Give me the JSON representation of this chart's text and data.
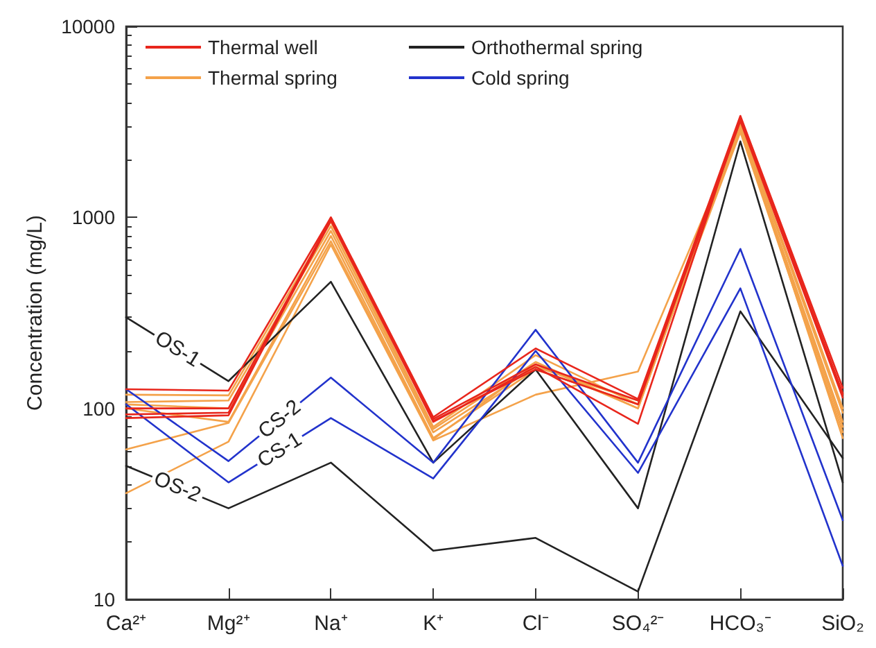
{
  "chart_data": {
    "type": "line",
    "ylabel": "Concentration (mg/L)",
    "log": "y",
    "grid": false,
    "legend": "top left",
    "marker": "none",
    "line_style": "solid",
    "categories": [
      "Ca²⁺",
      "Mg²⁺",
      "Na⁺",
      "K⁺",
      "Cl⁻",
      "SO₄²⁻",
      "HCO₃⁻",
      "SiO₂"
    ],
    "ylim": [
      10,
      10000
    ],
    "yticks": [
      10,
      100,
      1000,
      10000
    ],
    "series": [
      {
        "color": "#f4a24a",
        "values": [
          118,
          117,
          950,
          80,
          190,
          105,
          3100,
          100
        ]
      },
      {
        "color": "#f4a24a",
        "values": [
          108,
          110,
          900,
          78,
          175,
          100,
          3000,
          95
        ]
      },
      {
        "color": "#f4a24a",
        "values": [
          105,
          100,
          850,
          75,
          165,
          110,
          2900,
          85
        ]
      },
      {
        "color": "#f4a24a",
        "values": [
          100,
          85,
          800,
          70,
          160,
          105,
          2800,
          75
        ]
      },
      {
        "color": "#f4a24a",
        "values": [
          61,
          84,
          750,
          69,
          170,
          100,
          3000,
          70
        ]
      },
      {
        "name": "Thermal spring",
        "color": "#f4a24a",
        "values": [
          36,
          67,
          720,
          68,
          118,
          156,
          2900,
          80
        ]
      },
      {
        "name": "Orthothermal spring",
        "color": "#222222",
        "values": [
          300,
          139,
          460,
          52,
          160,
          30,
          2500,
          41
        ]
      },
      {
        "color": "#222222",
        "values": [
          50,
          30,
          52,
          18,
          21,
          11,
          322,
          55
        ]
      },
      {
        "name": "Cold spring",
        "color": "#2233cc",
        "values": [
          126,
          53,
          145,
          52,
          258,
          52,
          684,
          26
        ]
      },
      {
        "color": "#2233cc",
        "values": [
          105,
          41,
          89,
          43,
          200,
          46,
          425,
          15
        ]
      },
      {
        "name": "Thermal well",
        "color": "#e8261c",
        "values": [
          126,
          124,
          1000,
          90,
          206,
          112,
          3400,
          128
        ]
      },
      {
        "color": "#e8261c",
        "values": [
          100,
          100,
          980,
          88,
          170,
          110,
          3300,
          120
        ]
      },
      {
        "color": "#e8261c",
        "values": [
          93,
          95,
          960,
          86,
          160,
          105,
          3200,
          114
        ]
      },
      {
        "color": "#e8261c",
        "values": [
          89,
          92,
          1000,
          85,
          165,
          83,
          3350,
          118
        ]
      }
    ],
    "annotations": [
      {
        "text": "OS-1",
        "x": "Ca²⁺",
        "y": 300
      },
      {
        "text": "OS-2",
        "x": "Ca²⁺",
        "y": 50
      },
      {
        "text": "CS-2",
        "x": "Mg²⁺",
        "y": 53
      },
      {
        "text": "CS-1",
        "x": "Mg²⁺",
        "y": 41
      }
    ]
  }
}
